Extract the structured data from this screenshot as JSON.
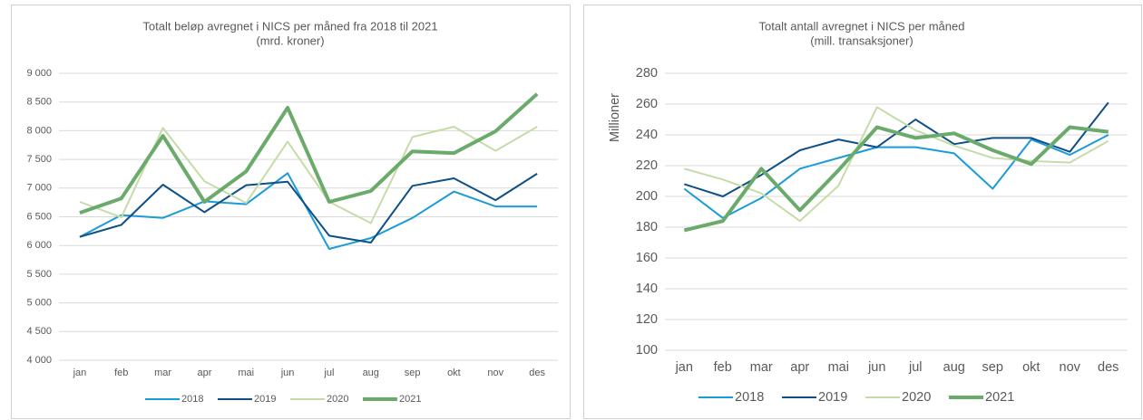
{
  "chart_data": [
    {
      "type": "line",
      "title": "Totalt beløp avregnet i NICS per måned fra 2018 til 2021",
      "subtitle": "(mrd. kroner)",
      "categories": [
        "jan",
        "feb",
        "mar",
        "apr",
        "mai",
        "jun",
        "jul",
        "aug",
        "sep",
        "okt",
        "nov",
        "des"
      ],
      "series": [
        {
          "name": "2018",
          "color": "#1b9bd7",
          "values": [
            6150,
            6530,
            6480,
            6770,
            6720,
            7260,
            5940,
            6130,
            6480,
            6940,
            6680,
            6680
          ]
        },
        {
          "name": "2019",
          "color": "#0d4f86",
          "values": [
            6150,
            6360,
            7060,
            6580,
            7050,
            7110,
            6170,
            6050,
            7040,
            7170,
            6790,
            7250
          ]
        },
        {
          "name": "2020",
          "color": "#c5dca8",
          "values": [
            6760,
            6490,
            8050,
            7120,
            6740,
            7810,
            6760,
            6390,
            7890,
            8070,
            7650,
            8070
          ]
        },
        {
          "name": "2021",
          "color": "#6aaa6a",
          "values": [
            6570,
            6820,
            7910,
            6760,
            7290,
            8400,
            6760,
            6950,
            7640,
            7610,
            7990,
            8640
          ]
        }
      ],
      "ylim": [
        4000,
        9000
      ],
      "yticks": [
        {
          "value": 4000,
          "label": "4 000"
        },
        {
          "value": 4500,
          "label": "4 500"
        },
        {
          "value": 5000,
          "label": "5 000"
        },
        {
          "value": 5500,
          "label": "5 500"
        },
        {
          "value": 6000,
          "label": "6 000"
        },
        {
          "value": 6500,
          "label": "6 500"
        },
        {
          "value": 7000,
          "label": "7 000"
        },
        {
          "value": 7500,
          "label": "7 500"
        },
        {
          "value": 8000,
          "label": "8 000"
        },
        {
          "value": 8500,
          "label": "8 500"
        },
        {
          "value": 9000,
          "label": "9 000"
        }
      ],
      "grid": true,
      "legend": "bottom"
    },
    {
      "type": "line",
      "title": "Totalt antall avregnet i NICS per måned",
      "subtitle": "(mill. transaksjoner)",
      "ylabel": "Millioner",
      "categories": [
        "jan",
        "feb",
        "mar",
        "apr",
        "mai",
        "jun",
        "jul",
        "aug",
        "sep",
        "okt",
        "nov",
        "des"
      ],
      "series": [
        {
          "name": "2018",
          "color": "#1b9bd7",
          "values": [
            205,
            186,
            199,
            218,
            225,
            232,
            232,
            228,
            205,
            237,
            227,
            240
          ]
        },
        {
          "name": "2019",
          "color": "#0d4f86",
          "values": [
            208,
            200,
            214,
            230,
            237,
            232,
            250,
            234,
            238,
            238,
            229,
            261
          ]
        },
        {
          "name": "2020",
          "color": "#c5dca8",
          "values": [
            218,
            211,
            202,
            184,
            207,
            258,
            243,
            233,
            225,
            223,
            222,
            236
          ]
        },
        {
          "name": "2021",
          "color": "#6aaa6a",
          "values": [
            178,
            184,
            218,
            191,
            217,
            245,
            238,
            241,
            230,
            221,
            245,
            242
          ]
        }
      ],
      "ylim": [
        100,
        280
      ],
      "yticks": [
        100,
        120,
        140,
        160,
        180,
        200,
        220,
        240,
        260,
        280
      ],
      "grid": true,
      "legend": "bottom"
    }
  ]
}
